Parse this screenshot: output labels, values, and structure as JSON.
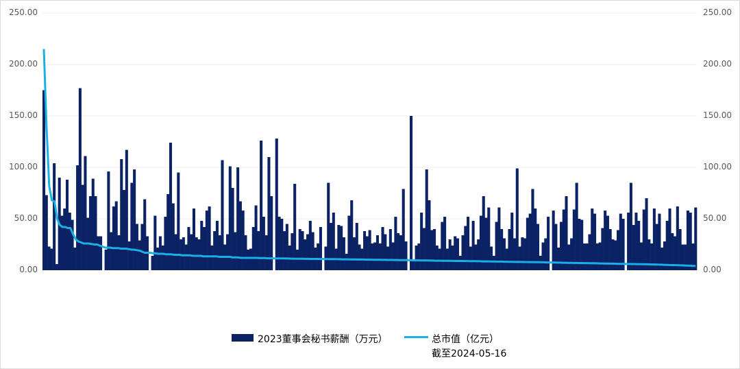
{
  "chart_data": {
    "type": "bar+line",
    "title": "",
    "xlabel": "",
    "ylabel_left": "",
    "ylabel_right": "",
    "ylim": [
      0,
      250
    ],
    "y2lim": [
      0,
      250
    ],
    "yticks": [
      "0.00",
      "50.00",
      "100.00",
      "150.00",
      "200.00",
      "250.00"
    ],
    "grid": true,
    "legend_position": "bottom",
    "colors": {
      "bar": "#0b2265",
      "line": "#1aafe6",
      "grid": "#ececec",
      "tick": "#595959"
    },
    "series": [
      {
        "name": "2023董事会秘书薪酬（万元）",
        "type": "bar",
        "axis": "left",
        "values": [
          175,
          73,
          23,
          21,
          104,
          6,
          90,
          53,
          60,
          88,
          56,
          49,
          22,
          102,
          177,
          83,
          111,
          51,
          72,
          89,
          72,
          33,
          33,
          0,
          20,
          96,
          37,
          62,
          67,
          34,
          108,
          78,
          117,
          28,
          85,
          98,
          45,
          29,
          45,
          69,
          33,
          0,
          14,
          53,
          22,
          33,
          24,
          52,
          74,
          124,
          65,
          35,
          95,
          30,
          32,
          25,
          42,
          35,
          60,
          32,
          30,
          48,
          42,
          58,
          62,
          24,
          38,
          48,
          34,
          107,
          25,
          35,
          101,
          80,
          37,
          100,
          67,
          58,
          34,
          20,
          21,
          42,
          63,
          38,
          126,
          52,
          34,
          110,
          72,
          0,
          128,
          52,
          50,
          38,
          45,
          24,
          36,
          84,
          20,
          40,
          38,
          30,
          35,
          48,
          37,
          22,
          26,
          42,
          0,
          23,
          85,
          46,
          56,
          21,
          44,
          43,
          32,
          16,
          53,
          68,
          32,
          46,
          25,
          21,
          38,
          33,
          39,
          26,
          27,
          34,
          26,
          42,
          35,
          23,
          40,
          27,
          52,
          36,
          34,
          79,
          28,
          0,
          150,
          10,
          24,
          26,
          56,
          41,
          98,
          68,
          39,
          40,
          24,
          21,
          47,
          52,
          21,
          30,
          24,
          33,
          31,
          14,
          34,
          43,
          52,
          23,
          48,
          25,
          30,
          53,
          72,
          51,
          61,
          23,
          14,
          47,
          61,
          40,
          31,
          21,
          40,
          56,
          31,
          99,
          23,
          32,
          31,
          51,
          55,
          79,
          60,
          45,
          14,
          27,
          31,
          52,
          0,
          58,
          45,
          22,
          47,
          59,
          72,
          25,
          31,
          59,
          85,
          50,
          49,
          26,
          26,
          35,
          60,
          55,
          26,
          27,
          41,
          58,
          53,
          40,
          30,
          29,
          39,
          55,
          50,
          0,
          56,
          85,
          44,
          56,
          48,
          27,
          59,
          70,
          30,
          26,
          60,
          45,
          55,
          22,
          28,
          48,
          60,
          36,
          33,
          62,
          40,
          25,
          25,
          58,
          56,
          26,
          61
        ]
      },
      {
        "name": "总市值（亿元） 截至2024-05-16",
        "type": "line",
        "axis": "right",
        "values": [
          215,
          140,
          82,
          68,
          67,
          50,
          44,
          42,
          42,
          41,
          41,
          35,
          30,
          28,
          27,
          26,
          26,
          26,
          25.5,
          25,
          25,
          24,
          23,
          22,
          22,
          22,
          21.5,
          21.5,
          21.5,
          21,
          21,
          21,
          20.5,
          20,
          20,
          19.5,
          19,
          18,
          17,
          17,
          17,
          16.5,
          16.5,
          16,
          16,
          16,
          15.5,
          15.5,
          15.5,
          15,
          15,
          15,
          14.5,
          14.5,
          14.5,
          14.5,
          14,
          14,
          14,
          14,
          13.5,
          13.5,
          13.5,
          13.5,
          13.5,
          13.5,
          13,
          13,
          13,
          13,
          13,
          12.5,
          12.5,
          12.5,
          12,
          12,
          12,
          12,
          12,
          12,
          12,
          11.8,
          11.8,
          11.8,
          11.6,
          11.6,
          11.6,
          11.5,
          11.5,
          11.5,
          11.5,
          11.4,
          11.4,
          11.3,
          11.3,
          11.2,
          11.2,
          11.2,
          11.1,
          11.1,
          11,
          11,
          11,
          11,
          10.9,
          10.9,
          10.9,
          10.8,
          10.8,
          10.8,
          10.7,
          10.7,
          10.6,
          10.6,
          10.6,
          10.5,
          10.5,
          10.5,
          10.4,
          10.4,
          10.4,
          10.3,
          10.3,
          10.3,
          10.2,
          10.2,
          10.2,
          10.1,
          10.1,
          10,
          10,
          10,
          9.9,
          9.9,
          9.8,
          9.8,
          9.8,
          9.7,
          9.7,
          9.6,
          9.6,
          9.6,
          9.5,
          9.5,
          9.5,
          9.4,
          9.4,
          9.3,
          9.3,
          9.3,
          9.2,
          9.2,
          9.2,
          9.1,
          9.1,
          9,
          9,
          9,
          8.9,
          8.9,
          8.8,
          8.8,
          8.8,
          8.7,
          8.7,
          8.6,
          8.6,
          8.6,
          8.5,
          8.5,
          8.4,
          8.4,
          8.4,
          8.3,
          8.3,
          8.2,
          8.2,
          8.1,
          8.1,
          8.1,
          8,
          8,
          7.9,
          7.9,
          7.8,
          7.8,
          7.8,
          7.7,
          7.7,
          7.6,
          7.6,
          7.5,
          7.5,
          7.4,
          7.4,
          7.3,
          7.3,
          7.2,
          7.2,
          7.1,
          7.1,
          7,
          7,
          6.9,
          6.9,
          6.8,
          6.8,
          6.7,
          6.7,
          6.6,
          6.6,
          6.5,
          6.5,
          6.4,
          6.4,
          6.3,
          6.3,
          6.2,
          6.2,
          6.1,
          6.1,
          6,
          6,
          5.9,
          5.9,
          5.8,
          5.8,
          5.7,
          5.7,
          5.6,
          5.6,
          5.5,
          5.4,
          5.3,
          5.2,
          5.1,
          5,
          5,
          4.9,
          4.8,
          4.7,
          4.6,
          4.5,
          4.4,
          4.3,
          4.2
        ]
      }
    ]
  },
  "legend": {
    "bar_label": "2023董事会秘书薪酬（万元）",
    "line_label": "总市值（亿元）",
    "line_label_2": "截至2024-05-16"
  }
}
